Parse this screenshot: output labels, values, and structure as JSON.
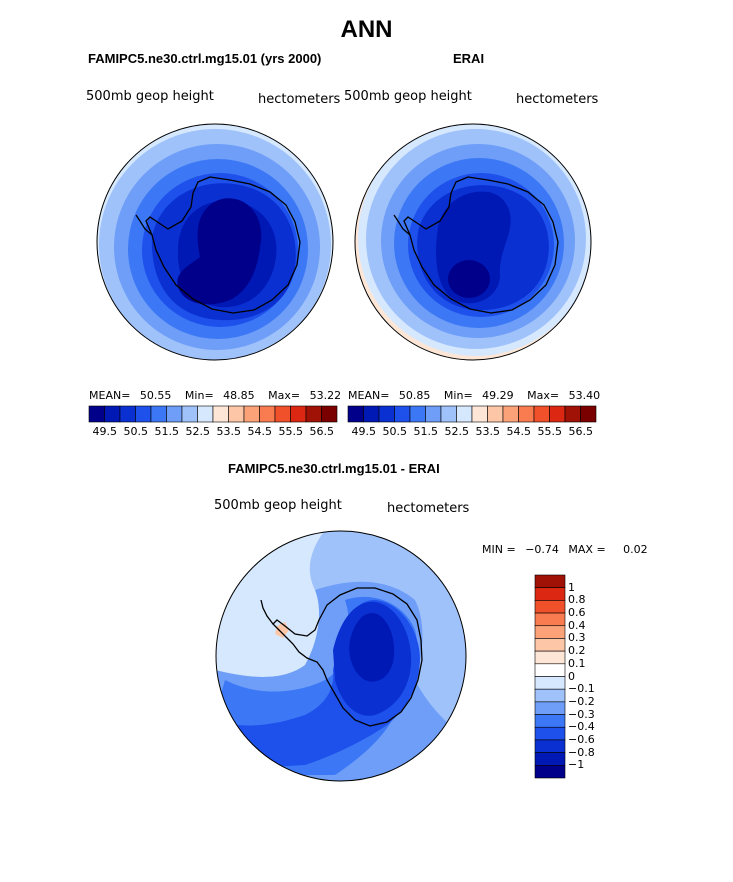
{
  "title": "ANN",
  "panels": [
    {
      "title": "FAMIPC5.ne30.ctrl.mg15.01 (yrs 2000)",
      "variable": "500mb geop height",
      "units": "hectometers",
      "mean_label": "MEAN=",
      "mean": "50.55",
      "min_label": "Min=",
      "min": "48.85",
      "max_label": "Max=",
      "max": "53.22"
    },
    {
      "title": "ERAI",
      "variable": "500mb geop height",
      "units": "hectometers",
      "mean_label": "MEAN=",
      "mean": "50.85",
      "min_label": "Min=",
      "min": "49.29",
      "max_label": "Max=",
      "max": "53.40"
    },
    {
      "title": "FAMIPC5.ne30.ctrl.mg15.01 - ERAI",
      "variable": "500mb geop height",
      "units": "hectometers",
      "min_label": "MIN =",
      "min": "−0.74",
      "max_label": "MAX =",
      "max": "0.02"
    }
  ],
  "abs_colorbar": {
    "colors": [
      "#00008a",
      "#0018b4",
      "#0a30d2",
      "#1e50eb",
      "#3c78f5",
      "#6e9ef7",
      "#a0c2fb",
      "#d6e8fd",
      "#fde6d6",
      "#fdc6a6",
      "#fba278",
      "#f87c50",
      "#f0502a",
      "#dc2812",
      "#a01206",
      "#7a0000"
    ],
    "labels": [
      "49.5",
      "50.5",
      "51.5",
      "52.5",
      "53.5",
      "54.5",
      "55.5",
      "56.5"
    ]
  },
  "diff_colorbar": {
    "colors": [
      "#00008a",
      "#0018b4",
      "#0a30d2",
      "#1e50eb",
      "#3c78f5",
      "#6e9ef7",
      "#a0c2fb",
      "#d6e8fd",
      "#ffffff",
      "#fde6d6",
      "#fdc6a6",
      "#fba278",
      "#f87c50",
      "#f0502a",
      "#dc2812",
      "#a01206"
    ],
    "labels": [
      "1",
      "0.8",
      "0.6",
      "0.4",
      "0.3",
      "0.2",
      "0.1",
      "0",
      "−0.1",
      "−0.2",
      "−0.3",
      "−0.4",
      "−0.6",
      "−0.8",
      "−1"
    ]
  }
}
